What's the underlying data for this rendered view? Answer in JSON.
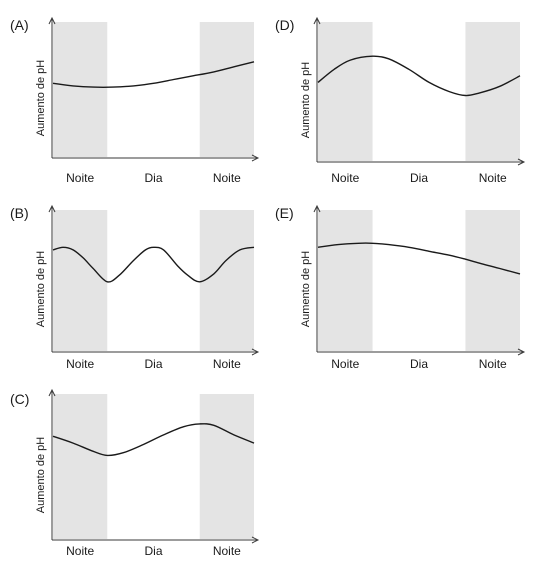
{
  "chart_data": [
    {
      "type": "line",
      "panel_label": "(A)",
      "ylabel": "Aumento de pH",
      "regions": [
        {
          "label": "Noite",
          "shaded": true,
          "x0": 0,
          "x1": 0.27
        },
        {
          "label": "Dia",
          "shaded": false,
          "x0": 0.27,
          "x1": 0.73
        },
        {
          "label": "Noite",
          "shaded": true,
          "x0": 0.73,
          "x1": 1
        }
      ],
      "x": [
        0,
        0.1,
        0.2,
        0.3,
        0.4,
        0.5,
        0.6,
        0.7,
        0.8,
        0.9,
        1.0
      ],
      "y": [
        0.58,
        0.56,
        0.55,
        0.55,
        0.56,
        0.58,
        0.61,
        0.64,
        0.67,
        0.71,
        0.75
      ],
      "ylim": [
        0,
        1
      ],
      "grid": false
    },
    {
      "type": "line",
      "panel_label": "(B)",
      "ylabel": "Aumento de pH",
      "regions": [
        {
          "label": "Noite",
          "shaded": true,
          "x0": 0,
          "x1": 0.27
        },
        {
          "label": "Dia",
          "shaded": false,
          "x0": 0.27,
          "x1": 0.73
        },
        {
          "label": "Noite",
          "shaded": true,
          "x0": 0.73,
          "x1": 1
        }
      ],
      "x": [
        0,
        0.05,
        0.1,
        0.15,
        0.2,
        0.27,
        0.33,
        0.4,
        0.46,
        0.5,
        0.55,
        0.62,
        0.67,
        0.73,
        0.8,
        0.86,
        0.93,
        1.0
      ],
      "y": [
        0.76,
        0.78,
        0.76,
        0.7,
        0.62,
        0.52,
        0.57,
        0.68,
        0.76,
        0.78,
        0.76,
        0.64,
        0.57,
        0.52,
        0.58,
        0.68,
        0.76,
        0.78
      ],
      "ylim": [
        0,
        1
      ],
      "grid": false
    },
    {
      "type": "line",
      "panel_label": "(C)",
      "ylabel": "Aumento de pH",
      "regions": [
        {
          "label": "Noite",
          "shaded": true,
          "x0": 0,
          "x1": 0.27
        },
        {
          "label": "Dia",
          "shaded": false,
          "x0": 0.27,
          "x1": 0.73
        },
        {
          "label": "Noite",
          "shaded": true,
          "x0": 0.73,
          "x1": 1
        }
      ],
      "x": [
        0,
        0.1,
        0.2,
        0.27,
        0.35,
        0.45,
        0.55,
        0.65,
        0.73,
        0.8,
        0.9,
        1.0
      ],
      "y": [
        0.75,
        0.7,
        0.64,
        0.61,
        0.63,
        0.69,
        0.76,
        0.82,
        0.84,
        0.83,
        0.76,
        0.7
      ],
      "ylim": [
        0,
        1
      ],
      "grid": false
    },
    {
      "type": "line",
      "panel_label": "(D)",
      "ylabel": "Aumento de pH",
      "regions": [
        {
          "label": "Noite",
          "shaded": true,
          "x0": 0,
          "x1": 0.27
        },
        {
          "label": "Dia",
          "shaded": false,
          "x0": 0.27,
          "x1": 0.73
        },
        {
          "label": "Noite",
          "shaded": true,
          "x0": 0.73,
          "x1": 1
        }
      ],
      "x": [
        0,
        0.08,
        0.16,
        0.27,
        0.35,
        0.45,
        0.55,
        0.65,
        0.73,
        0.8,
        0.9,
        1.0
      ],
      "y": [
        0.6,
        0.7,
        0.77,
        0.8,
        0.78,
        0.7,
        0.6,
        0.53,
        0.5,
        0.52,
        0.57,
        0.65
      ],
      "ylim": [
        0,
        1
      ],
      "grid": false
    },
    {
      "type": "line",
      "panel_label": "(E)",
      "ylabel": "Aumento de pH",
      "regions": [
        {
          "label": "Noite",
          "shaded": true,
          "x0": 0,
          "x1": 0.27
        },
        {
          "label": "Dia",
          "shaded": false,
          "x0": 0.27,
          "x1": 0.73
        },
        {
          "label": "Noite",
          "shaded": true,
          "x0": 0.73,
          "x1": 1
        }
      ],
      "x": [
        0,
        0.1,
        0.2,
        0.27,
        0.35,
        0.45,
        0.55,
        0.65,
        0.73,
        0.8,
        0.9,
        1.0
      ],
      "y": [
        0.78,
        0.8,
        0.81,
        0.81,
        0.8,
        0.78,
        0.75,
        0.72,
        0.69,
        0.66,
        0.62,
        0.58
      ],
      "ylim": [
        0,
        1
      ],
      "grid": false
    }
  ]
}
